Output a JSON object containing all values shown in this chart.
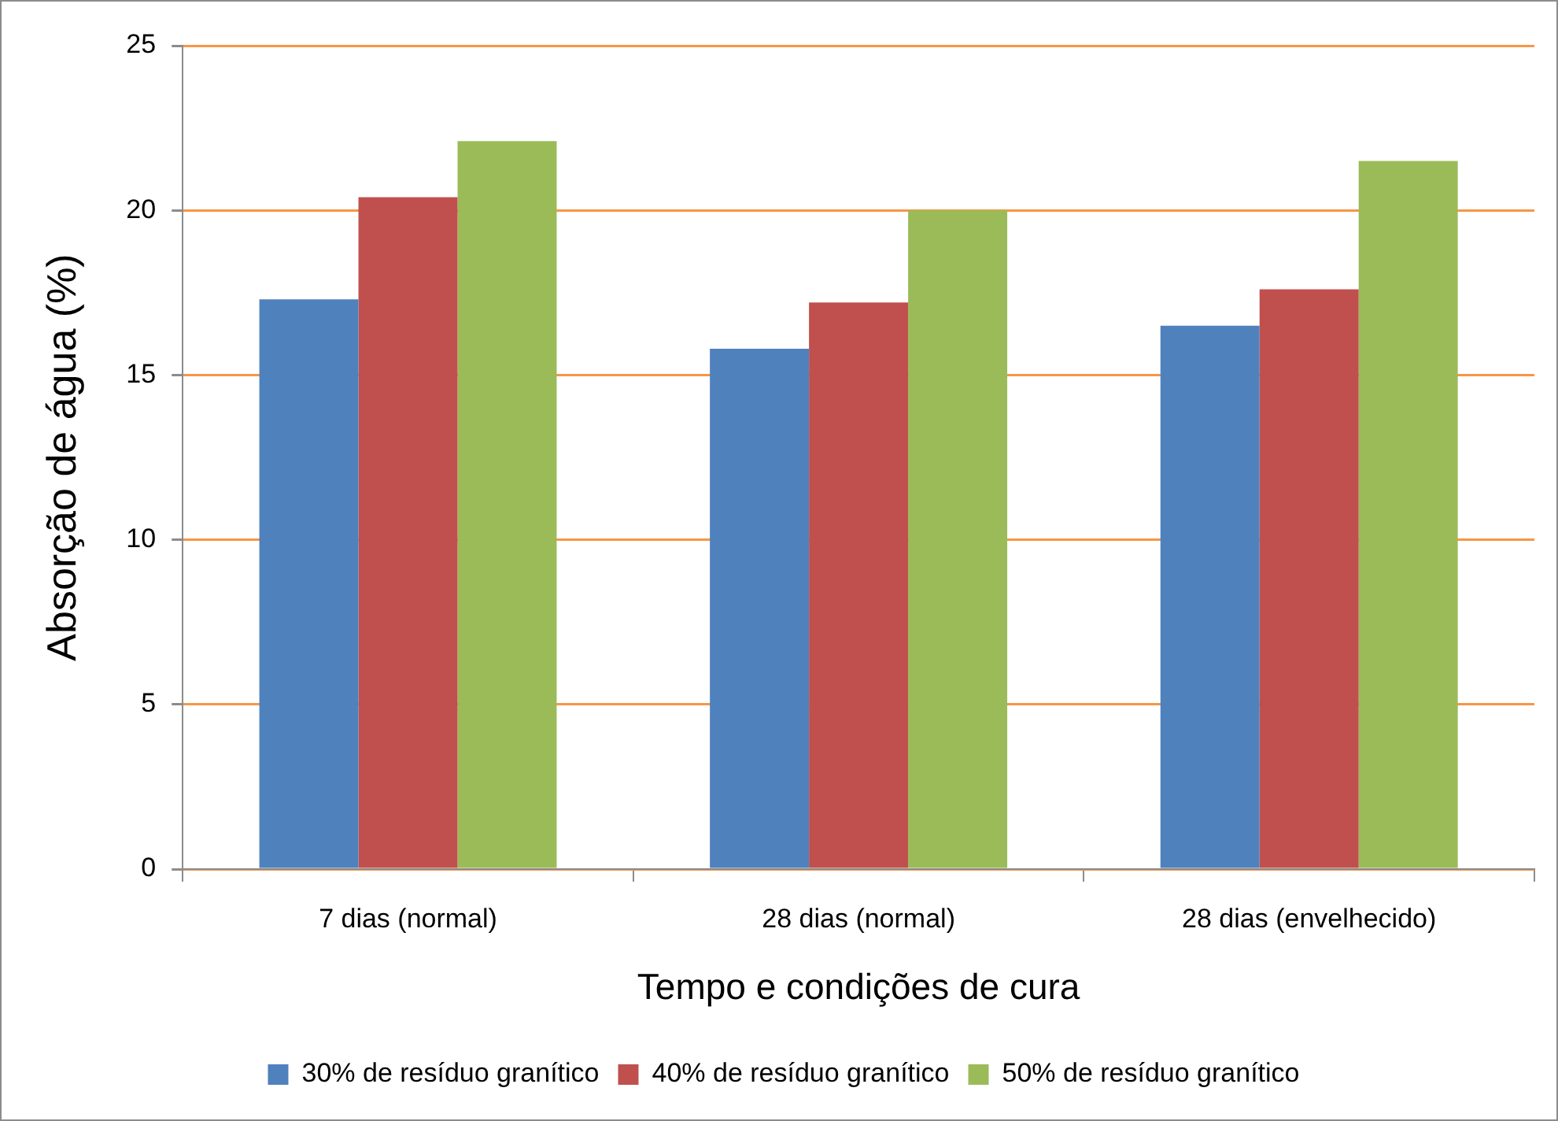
{
  "chart_data": {
    "type": "bar",
    "xlabel": "Tempo e condições de cura",
    "ylabel": "Absorção de água (%)",
    "categories": [
      "7 dias (normal)",
      "28 dias (normal)",
      "28 dias (envelhecido)"
    ],
    "series": [
      {
        "name": "30% de resíduo granítico",
        "color": "#4f81bd",
        "values": [
          17.3,
          15.8,
          16.5
        ]
      },
      {
        "name": "40% de resíduo granítico",
        "color": "#c0504d",
        "values": [
          20.4,
          17.2,
          17.6
        ]
      },
      {
        "name": "50% de resíduo granítico",
        "color": "#9bbb59",
        "values": [
          22.1,
          20.0,
          21.5
        ]
      }
    ],
    "ylim": [
      0,
      25
    ],
    "yticks": [
      0,
      5,
      10,
      15,
      20,
      25
    ],
    "grid": "y",
    "legend": "bottom"
  }
}
